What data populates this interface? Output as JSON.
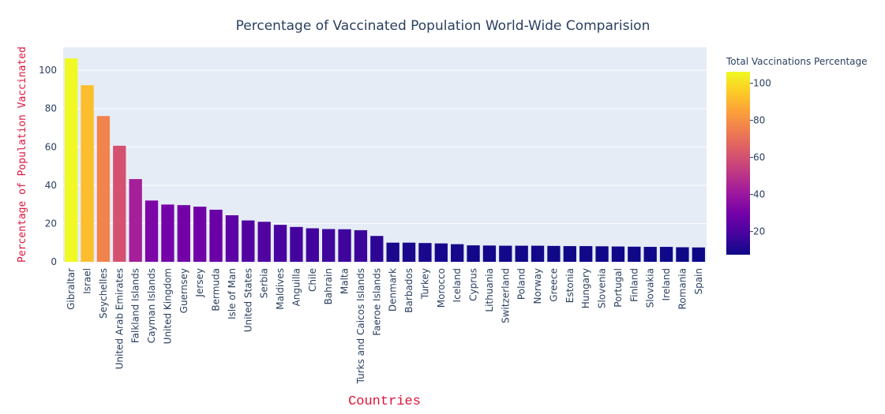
{
  "chart_data": {
    "type": "bar",
    "title": "Percentage of Vaccinated Population World-Wide Comparision",
    "xlabel": "Countries",
    "ylabel": "Percentage of Population Vaccinated",
    "ylim": [
      0,
      112
    ],
    "yticks": [
      0,
      20,
      40,
      60,
      80,
      100
    ],
    "grid": true,
    "categories": [
      "Gibraltar",
      "Israel",
      "Seychelles",
      "United Arab Emirates",
      "Falkland Islands",
      "Cayman Islands",
      "United Kingdom",
      "Guernsey",
      "Jersey",
      "Bermuda",
      "Isle of Man",
      "United States",
      "Serbia",
      "Maldives",
      "Anguilla",
      "Chile",
      "Bahrain",
      "Malta",
      "Turks and Caicos Islands",
      "Faeroe Islands",
      "Denmark",
      "Barbados",
      "Turkey",
      "Morocco",
      "Iceland",
      "Cyprus",
      "Lithuania",
      "Switzerland",
      "Poland",
      "Norway",
      "Greece",
      "Estonia",
      "Hungary",
      "Slovenia",
      "Portugal",
      "Finland",
      "Slovakia",
      "Ireland",
      "Romania",
      "Spain"
    ],
    "values": [
      106.2,
      92.2,
      76.1,
      60.6,
      43.2,
      32.0,
      29.9,
      29.6,
      28.8,
      27.2,
      24.3,
      21.6,
      20.9,
      19.3,
      18.2,
      17.5,
      17.1,
      17.0,
      16.5,
      13.5,
      10.0,
      10.0,
      9.8,
      9.6,
      9.2,
      8.6,
      8.5,
      8.4,
      8.4,
      8.4,
      8.3,
      8.2,
      8.2,
      8.1,
      8.0,
      7.9,
      7.8,
      7.8,
      7.6,
      7.5
    ],
    "colorbar": {
      "title": "Total Vaccinations Percentage",
      "ticks": [
        20,
        40,
        60,
        80,
        100
      ],
      "range": [
        7.5,
        106.2
      ],
      "colorscale": [
        "#0d0887",
        "#46039f",
        "#7201a8",
        "#9c179e",
        "#bd3786",
        "#d8576b",
        "#ed7953",
        "#fb9f3a",
        "#fdca26",
        "#f0f921"
      ]
    },
    "plot_background": "#e5ecf6"
  }
}
